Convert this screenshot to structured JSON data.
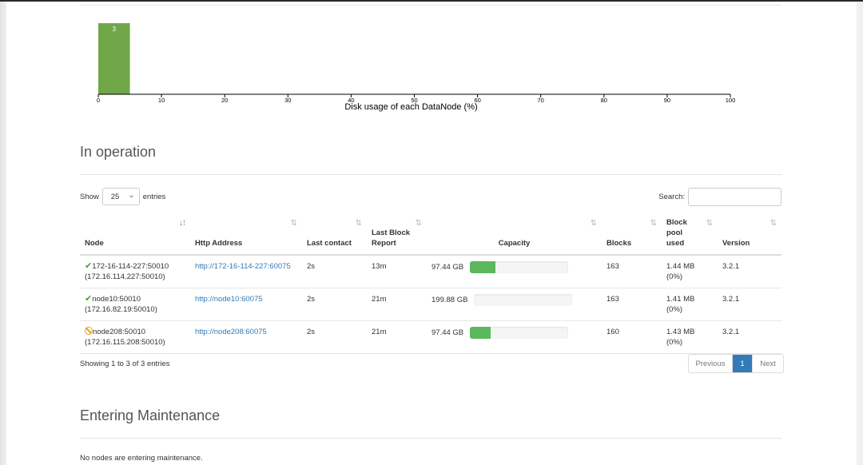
{
  "histogram": {
    "chart_data": {
      "type": "bar",
      "xlabel": "Disk usage of each DataNode (%)",
      "xlim": [
        0,
        100
      ],
      "ticks": [
        0,
        10,
        20,
        30,
        40,
        50,
        60,
        70,
        80,
        90,
        100
      ],
      "bins": [
        {
          "x0": 0,
          "x1": 5,
          "count": 3
        }
      ]
    },
    "bar_color": "#70a849"
  },
  "in_operation": {
    "title": "In operation",
    "show_label": "Show",
    "entries_value": "25",
    "entries_label": "entries",
    "search_label": "Search:",
    "search_value": "",
    "columns": [
      "Node",
      "Http Address",
      "Last contact",
      "Last Block Report",
      "Capacity",
      "Blocks",
      "Block pool used",
      "Version"
    ],
    "rows": [
      {
        "status": "ok",
        "node": "172-16-114-227:50010",
        "node_ip": "(172.16.114.227:50010)",
        "http": "http://172-16-114-227:60075",
        "last_contact": "2s",
        "last_block_report": "13m",
        "capacity": "97.44 GB",
        "used_fraction": 0.26,
        "blocks": "163",
        "pool_used": "1.44 MB (0%)",
        "version": "3.2.1"
      },
      {
        "status": "ok",
        "node": "node10:50010",
        "node_ip": "(172.16.82.19:50010)",
        "http": "http://node10:60075",
        "last_contact": "2s",
        "last_block_report": "21m",
        "capacity": "199.88 GB",
        "used_fraction": 0.0,
        "blocks": "163",
        "pool_used": "1.41 MB (0%)",
        "version": "3.2.1"
      },
      {
        "status": "decommissioned",
        "node": "node208:50010",
        "node_ip": "(172.16.115.208:50010)",
        "http": "http://node208:60075",
        "last_contact": "2s",
        "last_block_report": "21m",
        "capacity": "97.44 GB",
        "used_fraction": 0.21,
        "blocks": "160",
        "pool_used": "1.43 MB (0%)",
        "version": "3.2.1"
      }
    ],
    "info": "Showing 1 to 3 of 3 entries",
    "pagination": {
      "previous": "Previous",
      "current": "1",
      "next": "Next"
    }
  },
  "entering_maintenance": {
    "title": "Entering Maintenance",
    "message": "No nodes are entering maintenance."
  }
}
